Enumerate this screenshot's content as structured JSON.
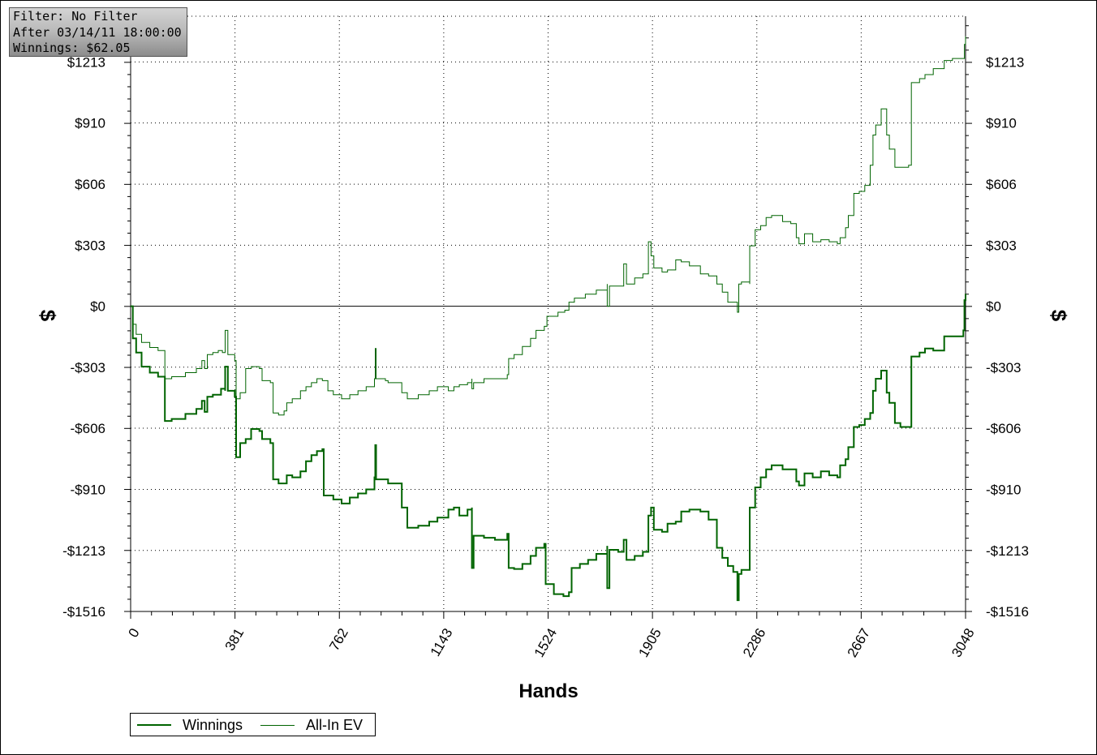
{
  "filter_box": {
    "line1": "Filter: No Filter",
    "line2": "After 03/14/11 18:00:00",
    "line3": "Winnings: $62.05"
  },
  "chart_data": {
    "type": "line",
    "xlabel": "Hands",
    "ylabel_left": "$",
    "ylabel_right": "$",
    "xlim": [
      0,
      3048
    ],
    "ylim": [
      -1516,
      1440
    ],
    "x_ticks": [
      0,
      381,
      762,
      1143,
      1524,
      1905,
      2286,
      2667,
      3048
    ],
    "y_ticks": [
      -1516,
      -1213,
      -910,
      -606,
      -303,
      0,
      303,
      606,
      910,
      1213
    ],
    "y_tick_labels": [
      "-$1516",
      "-$1213",
      "-$910",
      "-$606",
      "-$303",
      "$0",
      "$303",
      "$606",
      "$910",
      "$1213"
    ],
    "grid": true,
    "legend_position": "bottom-left",
    "series": [
      {
        "name": "Winnings",
        "color": "#006400",
        "width": 2,
        "points": [
          [
            0,
            0
          ],
          [
            8,
            -160
          ],
          [
            20,
            -230
          ],
          [
            40,
            -300
          ],
          [
            70,
            -330
          ],
          [
            100,
            -350
          ],
          [
            125,
            -370
          ],
          [
            125,
            -570
          ],
          [
            150,
            -560
          ],
          [
            200,
            -535
          ],
          [
            240,
            -510
          ],
          [
            260,
            -470
          ],
          [
            270,
            -525
          ],
          [
            280,
            -450
          ],
          [
            300,
            -440
          ],
          [
            330,
            -410
          ],
          [
            345,
            -420
          ],
          [
            345,
            -300
          ],
          [
            355,
            -420
          ],
          [
            380,
            -450
          ],
          [
            385,
            -750
          ],
          [
            400,
            -680
          ],
          [
            420,
            -660
          ],
          [
            440,
            -610
          ],
          [
            470,
            -620
          ],
          [
            480,
            -660
          ],
          [
            510,
            -680
          ],
          [
            520,
            -860
          ],
          [
            540,
            -880
          ],
          [
            560,
            -880
          ],
          [
            570,
            -840
          ],
          [
            590,
            -850
          ],
          [
            620,
            -820
          ],
          [
            640,
            -770
          ],
          [
            660,
            -740
          ],
          [
            680,
            -720
          ],
          [
            700,
            -710
          ],
          [
            705,
            -940
          ],
          [
            740,
            -960
          ],
          [
            770,
            -980
          ],
          [
            800,
            -950
          ],
          [
            830,
            -930
          ],
          [
            860,
            -910
          ],
          [
            890,
            -850
          ],
          [
            893,
            -690
          ],
          [
            896,
            -860
          ],
          [
            930,
            -860
          ],
          [
            940,
            -880
          ],
          [
            990,
            -1000
          ],
          [
            1010,
            -1100
          ],
          [
            1050,
            -1090
          ],
          [
            1090,
            -1070
          ],
          [
            1120,
            -1050
          ],
          [
            1160,
            -1010
          ],
          [
            1180,
            -1000
          ],
          [
            1200,
            -1040
          ],
          [
            1230,
            -1010
          ],
          [
            1246,
            -1000
          ],
          [
            1246,
            -1300
          ],
          [
            1252,
            -1140
          ],
          [
            1290,
            -1150
          ],
          [
            1330,
            -1160
          ],
          [
            1375,
            -1130
          ],
          [
            1380,
            -1300
          ],
          [
            1400,
            -1305
          ],
          [
            1430,
            -1280
          ],
          [
            1460,
            -1240
          ],
          [
            1480,
            -1200
          ],
          [
            1510,
            -1180
          ],
          [
            1515,
            -1380
          ],
          [
            1545,
            -1430
          ],
          [
            1580,
            -1440
          ],
          [
            1600,
            -1420
          ],
          [
            1610,
            -1300
          ],
          [
            1640,
            -1280
          ],
          [
            1670,
            -1260
          ],
          [
            1700,
            -1230
          ],
          [
            1740,
            -1190
          ],
          [
            1740,
            -1400
          ],
          [
            1748,
            -1210
          ],
          [
            1780,
            -1220
          ],
          [
            1800,
            -1160
          ],
          [
            1810,
            -1260
          ],
          [
            1840,
            -1240
          ],
          [
            1870,
            -1220
          ],
          [
            1890,
            -1040
          ],
          [
            1900,
            -1000
          ],
          [
            1910,
            -1110
          ],
          [
            1940,
            -1120
          ],
          [
            1960,
            -1080
          ],
          [
            1990,
            -1070
          ],
          [
            2010,
            -1020
          ],
          [
            2040,
            -1010
          ],
          [
            2080,
            -1020
          ],
          [
            2110,
            -1060
          ],
          [
            2140,
            -1200
          ],
          [
            2160,
            -1250
          ],
          [
            2180,
            -1290
          ],
          [
            2200,
            -1320
          ],
          [
            2215,
            -1460
          ],
          [
            2220,
            -1330
          ],
          [
            2230,
            -1310
          ],
          [
            2260,
            -1300
          ],
          [
            2260,
            -1000
          ],
          [
            2280,
            -900
          ],
          [
            2300,
            -850
          ],
          [
            2320,
            -810
          ],
          [
            2340,
            -790
          ],
          [
            2380,
            -810
          ],
          [
            2410,
            -810
          ],
          [
            2430,
            -870
          ],
          [
            2440,
            -890
          ],
          [
            2460,
            -830
          ],
          [
            2490,
            -850
          ],
          [
            2520,
            -820
          ],
          [
            2550,
            -840
          ],
          [
            2580,
            -850
          ],
          [
            2590,
            -790
          ],
          [
            2610,
            -760
          ],
          [
            2620,
            -700
          ],
          [
            2640,
            -600
          ],
          [
            2660,
            -590
          ],
          [
            2680,
            -560
          ],
          [
            2700,
            -530
          ],
          [
            2710,
            -420
          ],
          [
            2720,
            -360
          ],
          [
            2740,
            -320
          ],
          [
            2760,
            -430
          ],
          [
            2770,
            -480
          ],
          [
            2790,
            -580
          ],
          [
            2810,
            -600
          ],
          [
            2840,
            -600
          ],
          [
            2850,
            -450
          ],
          [
            2850,
            -250
          ],
          [
            2880,
            -230
          ],
          [
            2900,
            -210
          ],
          [
            2930,
            -220
          ],
          [
            2970,
            -150
          ],
          [
            3000,
            -150
          ],
          [
            3040,
            -120
          ],
          [
            3044,
            30
          ],
          [
            3048,
            62
          ]
        ]
      },
      {
        "name": "All-In EV",
        "color": "#006400",
        "width": 1,
        "points": [
          [
            0,
            0
          ],
          [
            8,
            -90
          ],
          [
            20,
            -140
          ],
          [
            40,
            -180
          ],
          [
            70,
            -205
          ],
          [
            100,
            -220
          ],
          [
            125,
            -240
          ],
          [
            125,
            -360
          ],
          [
            150,
            -350
          ],
          [
            200,
            -330
          ],
          [
            240,
            -310
          ],
          [
            260,
            -270
          ],
          [
            270,
            -310
          ],
          [
            280,
            -240
          ],
          [
            300,
            -230
          ],
          [
            320,
            -220
          ],
          [
            335,
            -230
          ],
          [
            345,
            -120
          ],
          [
            355,
            -240
          ],
          [
            380,
            -270
          ],
          [
            385,
            -460
          ],
          [
            400,
            -430
          ],
          [
            420,
            -310
          ],
          [
            440,
            -300
          ],
          [
            470,
            -310
          ],
          [
            480,
            -370
          ],
          [
            510,
            -380
          ],
          [
            520,
            -530
          ],
          [
            540,
            -540
          ],
          [
            560,
            -520
          ],
          [
            570,
            -480
          ],
          [
            590,
            -460
          ],
          [
            620,
            -420
          ],
          [
            640,
            -400
          ],
          [
            660,
            -380
          ],
          [
            680,
            -360
          ],
          [
            700,
            -370
          ],
          [
            720,
            -420
          ],
          [
            740,
            -440
          ],
          [
            770,
            -460
          ],
          [
            800,
            -440
          ],
          [
            830,
            -420
          ],
          [
            860,
            -400
          ],
          [
            890,
            -360
          ],
          [
            893,
            -210
          ],
          [
            896,
            -360
          ],
          [
            930,
            -370
          ],
          [
            940,
            -380
          ],
          [
            990,
            -430
          ],
          [
            1010,
            -460
          ],
          [
            1050,
            -440
          ],
          [
            1090,
            -420
          ],
          [
            1120,
            -400
          ],
          [
            1160,
            -420
          ],
          [
            1180,
            -400
          ],
          [
            1200,
            -390
          ],
          [
            1230,
            -380
          ],
          [
            1246,
            -360
          ],
          [
            1246,
            -410
          ],
          [
            1252,
            -380
          ],
          [
            1290,
            -360
          ],
          [
            1330,
            -360
          ],
          [
            1375,
            -340
          ],
          [
            1380,
            -260
          ],
          [
            1400,
            -240
          ],
          [
            1430,
            -200
          ],
          [
            1460,
            -160
          ],
          [
            1480,
            -120
          ],
          [
            1510,
            -100
          ],
          [
            1520,
            -50
          ],
          [
            1560,
            -30
          ],
          [
            1585,
            -20
          ],
          [
            1600,
            20
          ],
          [
            1620,
            40
          ],
          [
            1660,
            60
          ],
          [
            1700,
            80
          ],
          [
            1740,
            110
          ],
          [
            1740,
            0
          ],
          [
            1748,
            100
          ],
          [
            1780,
            100
          ],
          [
            1800,
            210
          ],
          [
            1810,
            110
          ],
          [
            1840,
            140
          ],
          [
            1870,
            160
          ],
          [
            1890,
            320
          ],
          [
            1900,
            250
          ],
          [
            1910,
            190
          ],
          [
            1940,
            170
          ],
          [
            1960,
            180
          ],
          [
            1990,
            230
          ],
          [
            2010,
            220
          ],
          [
            2040,
            200
          ],
          [
            2080,
            160
          ],
          [
            2110,
            150
          ],
          [
            2140,
            110
          ],
          [
            2160,
            70
          ],
          [
            2180,
            20
          ],
          [
            2200,
            20
          ],
          [
            2215,
            -30
          ],
          [
            2220,
            110
          ],
          [
            2230,
            120
          ],
          [
            2260,
            110
          ],
          [
            2260,
            300
          ],
          [
            2280,
            380
          ],
          [
            2300,
            400
          ],
          [
            2320,
            440
          ],
          [
            2340,
            450
          ],
          [
            2380,
            420
          ],
          [
            2410,
            410
          ],
          [
            2430,
            340
          ],
          [
            2440,
            310
          ],
          [
            2460,
            360
          ],
          [
            2490,
            320
          ],
          [
            2520,
            330
          ],
          [
            2550,
            320
          ],
          [
            2580,
            310
          ],
          [
            2590,
            340
          ],
          [
            2610,
            390
          ],
          [
            2620,
            450
          ],
          [
            2640,
            560
          ],
          [
            2660,
            570
          ],
          [
            2680,
            600
          ],
          [
            2700,
            700
          ],
          [
            2710,
            850
          ],
          [
            2720,
            900
          ],
          [
            2740,
            980
          ],
          [
            2760,
            850
          ],
          [
            2770,
            780
          ],
          [
            2790,
            690
          ],
          [
            2810,
            690
          ],
          [
            2840,
            700
          ],
          [
            2850,
            950
          ],
          [
            2850,
            1110
          ],
          [
            2880,
            1130
          ],
          [
            2900,
            1150
          ],
          [
            2930,
            1180
          ],
          [
            2970,
            1220
          ],
          [
            3000,
            1230
          ],
          [
            3040,
            1230
          ],
          [
            3044,
            1300
          ],
          [
            3048,
            1340
          ]
        ]
      }
    ]
  },
  "legend": {
    "items": [
      {
        "label": "Winnings"
      },
      {
        "label": "All-In EV"
      }
    ]
  }
}
